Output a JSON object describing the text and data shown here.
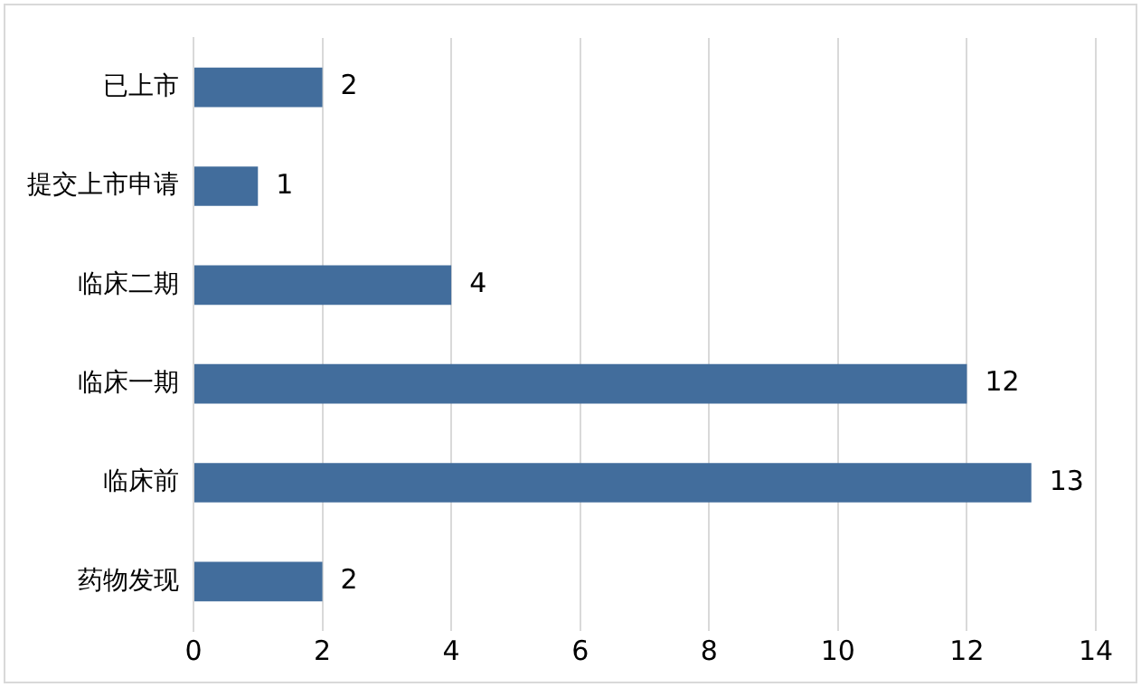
{
  "chart_data": {
    "type": "bar",
    "orientation": "horizontal",
    "categories": [
      "已上市",
      "提交上市申请",
      "临床二期",
      "临床一期",
      "临床前",
      "药物发现"
    ],
    "values": [
      2,
      1,
      4,
      12,
      13,
      2
    ],
    "color": "#426d9c",
    "xlim": [
      0,
      14
    ],
    "xticks": [
      0,
      2,
      4,
      6,
      8,
      10,
      12,
      14
    ],
    "grid": "x",
    "data_labels": true,
    "legend": false
  }
}
